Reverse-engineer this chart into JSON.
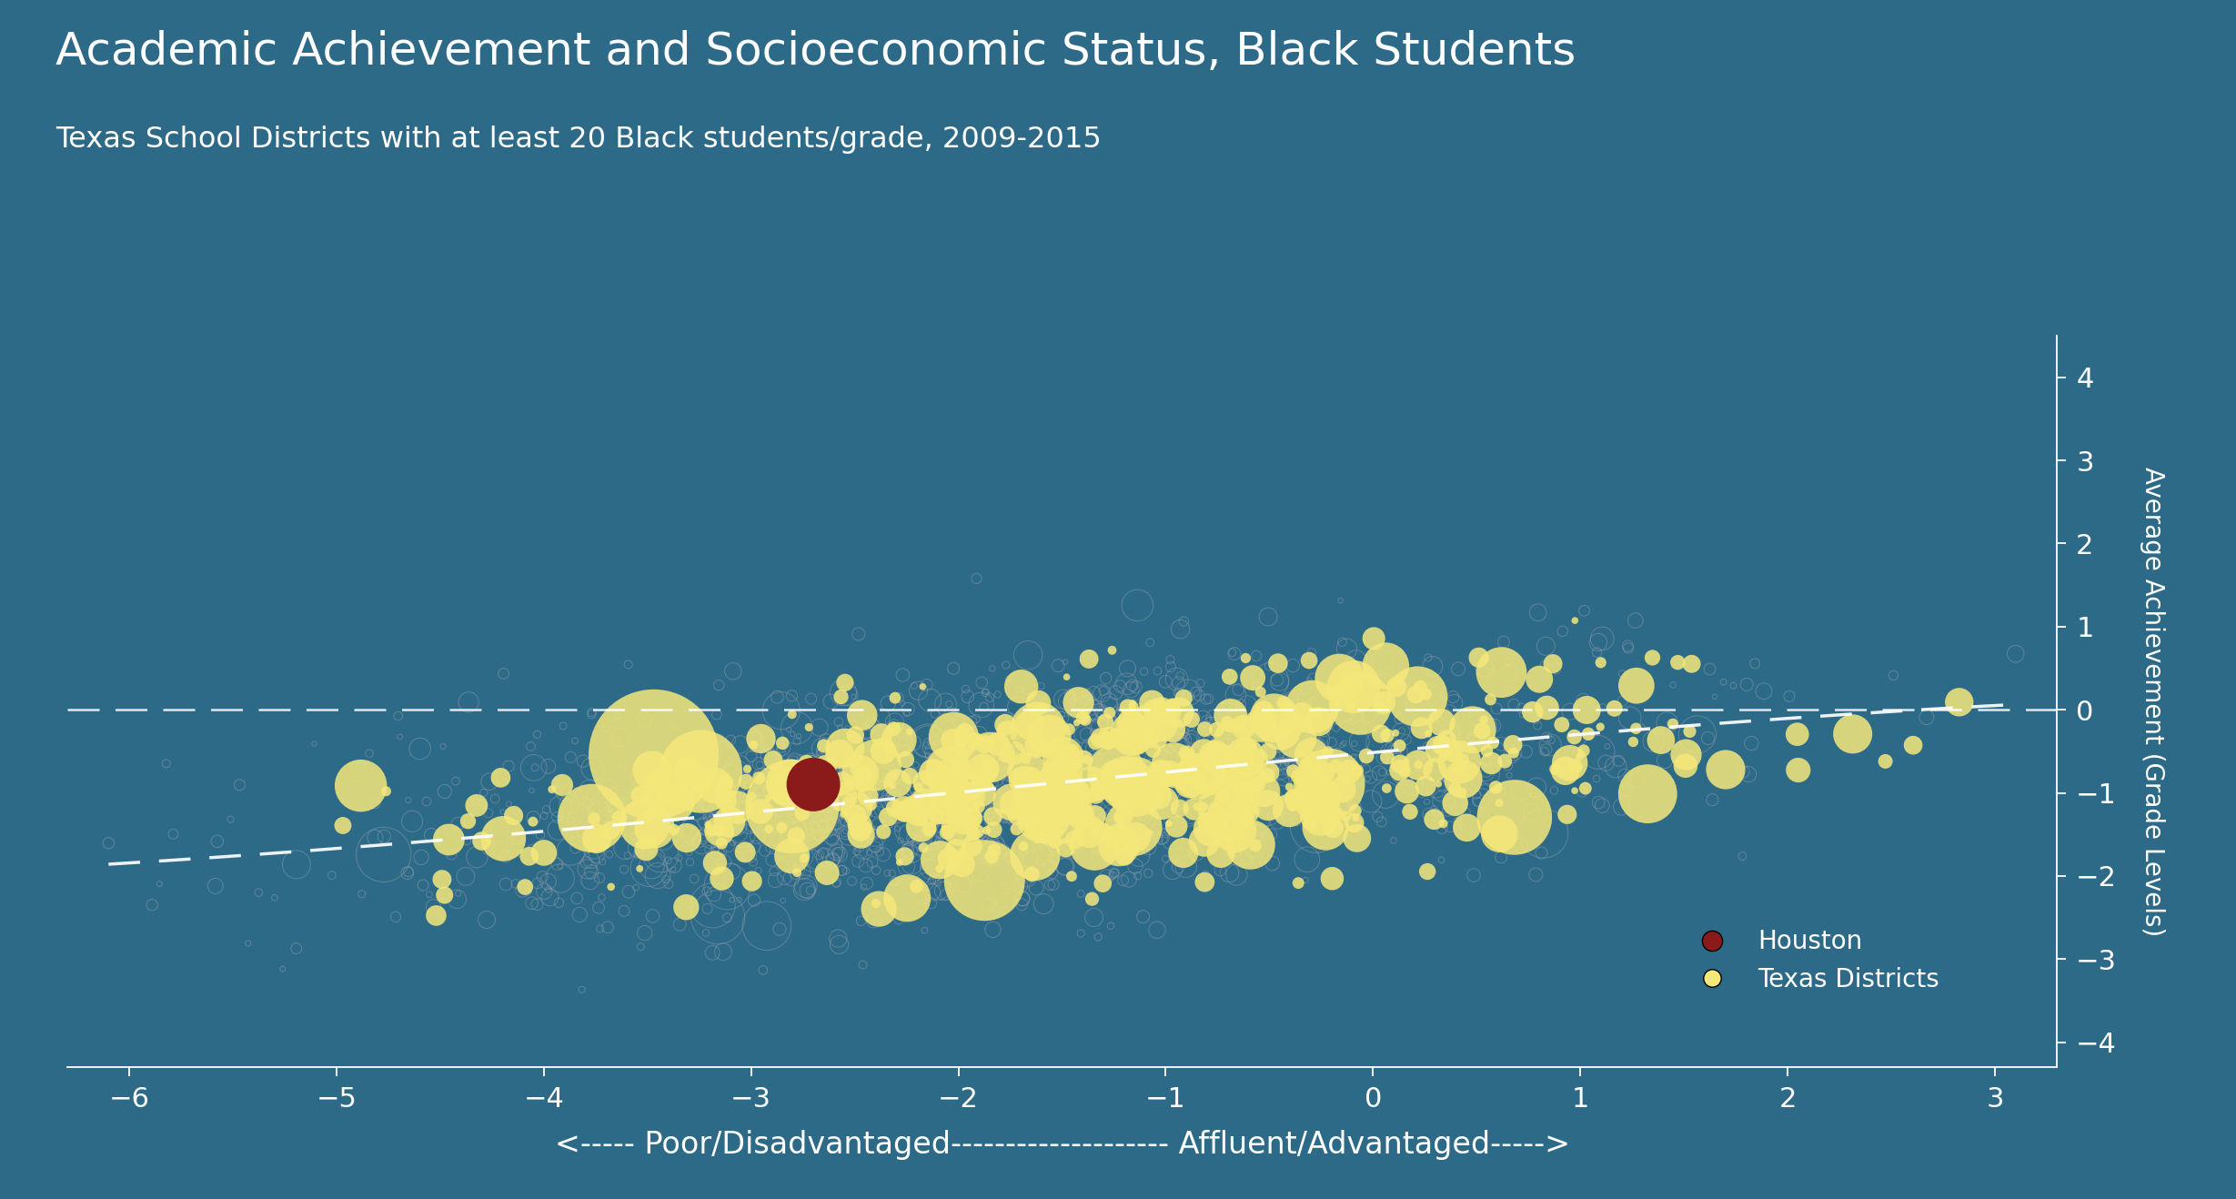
{
  "title": "Academic Achievement and Socioeconomic Status, Black Students",
  "subtitle": "Texas School Districts with at least 20 Black students/grade, 2009-2015",
  "xlabel": "<----- Poor/Disadvantaged-------------------- Affluent/Advantaged----->",
  "ylabel": "Average Achievement (Grade Levels)",
  "bg_color": "#2d6a88",
  "xlim": [
    -6.3,
    3.3
  ],
  "ylim": [
    -4.3,
    4.5
  ],
  "xticks": [
    -6,
    -5,
    -4,
    -3,
    -2,
    -1,
    0,
    1,
    2,
    3
  ],
  "yticks": [
    -4,
    -3,
    -2,
    -1,
    0,
    1,
    2,
    3,
    4
  ],
  "houston_x": -2.7,
  "houston_y": -0.9,
  "houston_size": 1800,
  "houston_color": "#8b1a1a",
  "texas_filled_color": "#f5e87a",
  "ghost_color": "#8a9aaa",
  "trend_color": "white",
  "hline_color": "white",
  "legend_houston": "Houston",
  "legend_texas": "Texas Districts",
  "seed": 42,
  "n_ghost": 1800,
  "n_filled": 600,
  "trend_ctrl_x": [
    -6.0,
    -4.5,
    -3.0,
    -1.5,
    0.0,
    1.5,
    3.0
  ],
  "trend_ctrl_y": [
    -1.85,
    -1.55,
    -1.25,
    -0.88,
    -0.5,
    -0.2,
    0.05
  ]
}
